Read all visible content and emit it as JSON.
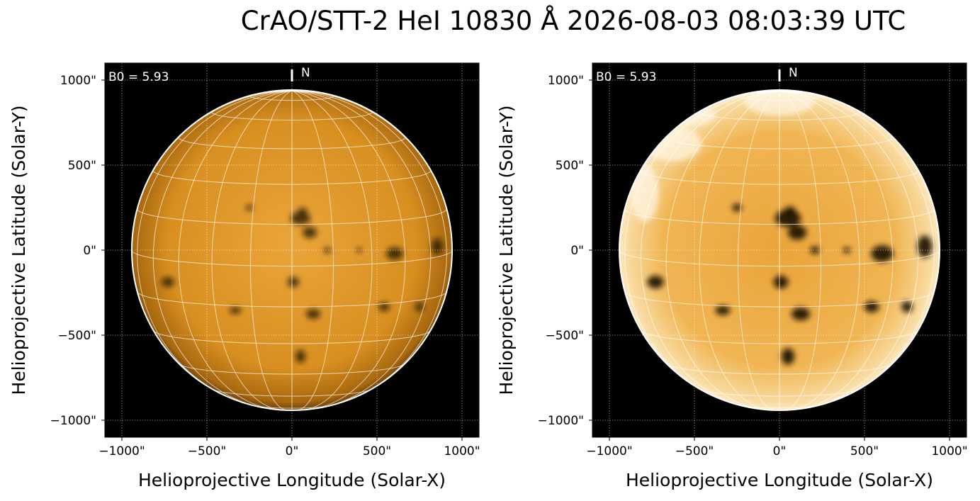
{
  "title": "CrAO/STT-2 HeI 10830 Å 2026-08-03 08:03:39 UTC",
  "chart_data": [
    {
      "type": "image",
      "xlabel": "Helioprojective Longitude (Solar-X)",
      "ylabel": "Helioprojective Latitude (Solar-Y)",
      "xlim": [
        -1100,
        1100
      ],
      "ylim": [
        -1100,
        1100
      ],
      "xticks": [
        {
          "value": -1000,
          "label": "−1000\""
        },
        {
          "value": -500,
          "label": "−500\""
        },
        {
          "value": 0,
          "label": "0\""
        },
        {
          "value": 500,
          "label": "500\""
        },
        {
          "value": 1000,
          "label": "1000\""
        }
      ],
      "yticks": [
        {
          "value": -1000,
          "label": "−1000\""
        },
        {
          "value": -500,
          "label": "−500\""
        },
        {
          "value": 0,
          "label": "0\""
        },
        {
          "value": 500,
          "label": "500\""
        },
        {
          "value": 1000,
          "label": "1000\""
        }
      ],
      "grid": true,
      "annotations": [
        "B0 = 5.93",
        "N"
      ]
    },
    {
      "type": "image",
      "xlabel": "Helioprojective Longitude (Solar-X)",
      "ylabel": "Helioprojective Latitude (Solar-Y)",
      "xlim": [
        -1100,
        1100
      ],
      "ylim": [
        -1100,
        1100
      ],
      "xticks": [
        {
          "value": -1000,
          "label": "−1000\""
        },
        {
          "value": -500,
          "label": "−500\""
        },
        {
          "value": 0,
          "label": "0\""
        },
        {
          "value": 500,
          "label": "500\""
        },
        {
          "value": 1000,
          "label": "1000\""
        }
      ],
      "yticks": [
        {
          "value": -1000,
          "label": "−1000\""
        },
        {
          "value": -500,
          "label": "−500\""
        },
        {
          "value": 0,
          "label": "0\""
        },
        {
          "value": 500,
          "label": "500\""
        },
        {
          "value": 1000,
          "label": "1000\""
        }
      ],
      "grid": true,
      "annotations": [
        "B0 = 5.93",
        "N"
      ]
    }
  ]
}
